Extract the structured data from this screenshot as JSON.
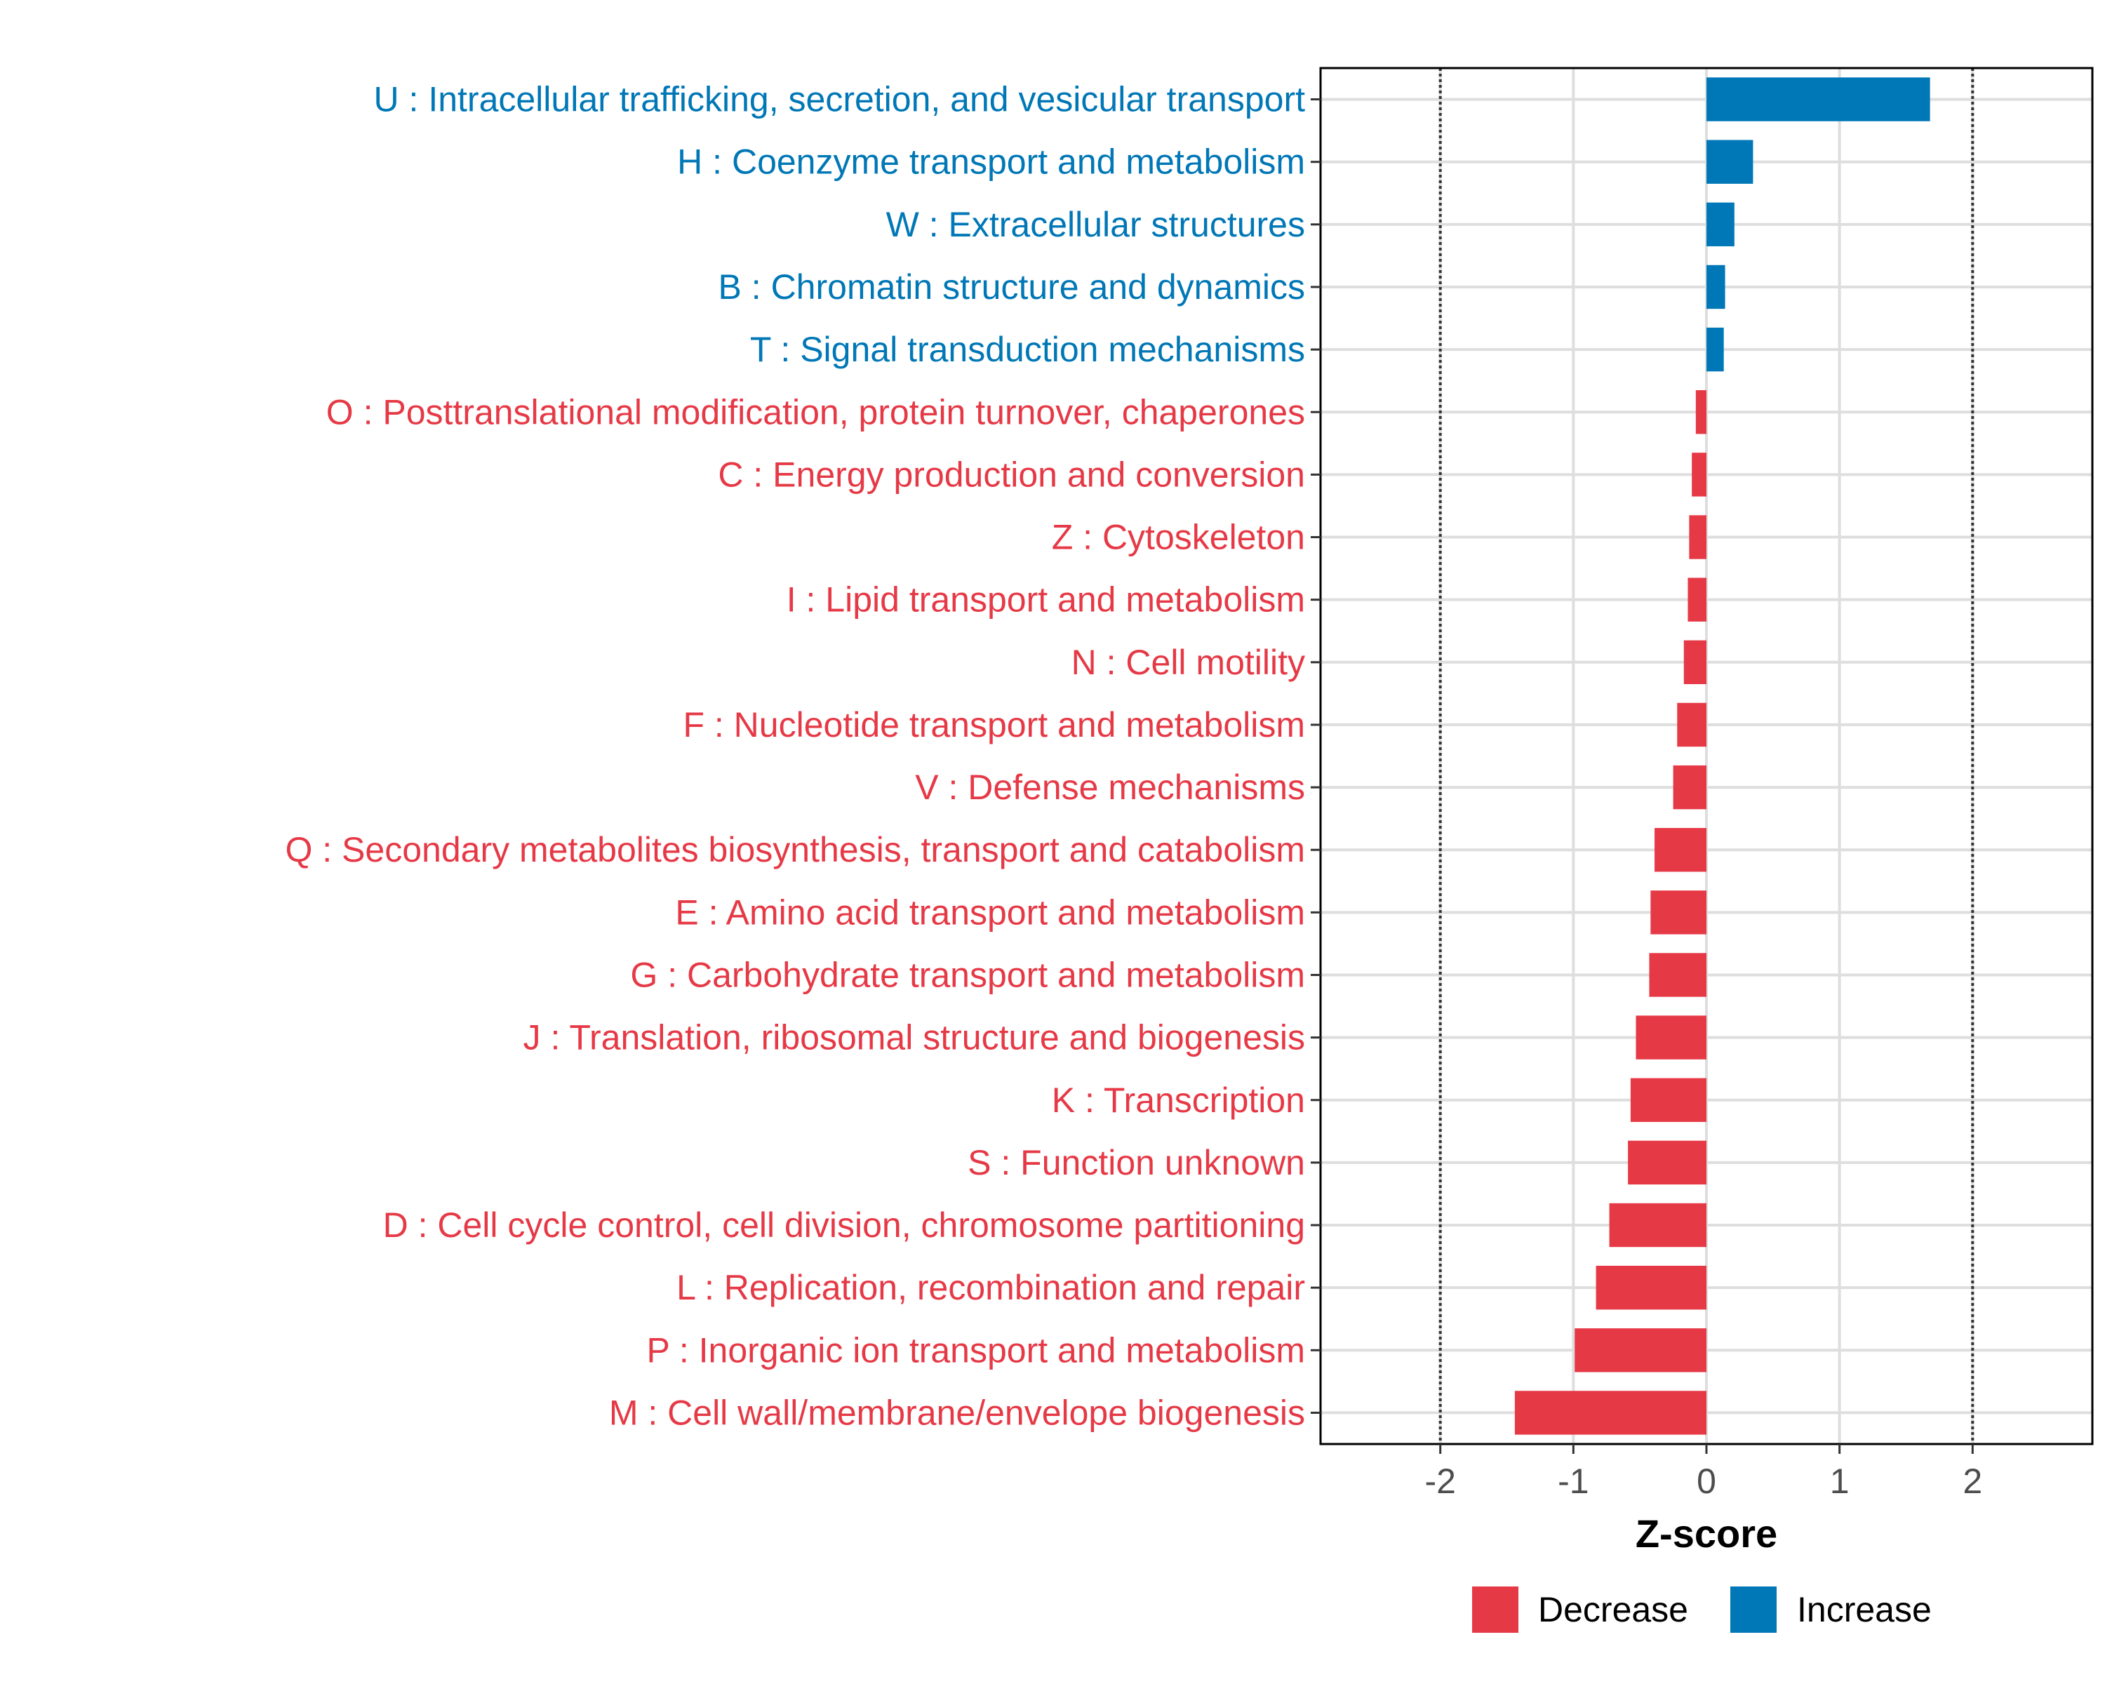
{
  "chart_data": {
    "type": "bar",
    "orientation": "horizontal",
    "title": "",
    "xlabel": "Z-score",
    "ylabel": "",
    "xlim": [
      -2.9,
      2.9
    ],
    "xticks": [
      -2,
      -1,
      0,
      1,
      2
    ],
    "xtick_labels": [
      "-2",
      "-1",
      "0",
      "1",
      "2"
    ],
    "reference_lines": [
      -2,
      2
    ],
    "grid": true,
    "legend_position": "bottom",
    "colors": {
      "Decrease": "#e63946",
      "Increase": "#0077b6"
    },
    "legend": [
      {
        "name": "Decrease",
        "color": "#e63946"
      },
      {
        "name": "Increase",
        "color": "#0077b6"
      }
    ],
    "categories": [
      "U : Intracellular trafficking, secretion, and vesicular transport",
      "H : Coenzyme transport and metabolism",
      "W : Extracellular structures",
      "B : Chromatin structure and dynamics",
      "T : Signal transduction mechanisms",
      "O : Posttranslational modification, protein turnover, chaperones",
      "C : Energy production and conversion",
      "Z : Cytoskeleton",
      "I : Lipid transport and metabolism",
      "N : Cell motility",
      "F : Nucleotide transport and metabolism",
      "V : Defense mechanisms",
      "Q : Secondary metabolites biosynthesis, transport and catabolism",
      "E : Amino acid transport and metabolism",
      "G : Carbohydrate transport and metabolism",
      "J : Translation, ribosomal structure and biogenesis",
      "K : Transcription",
      "S : Function unknown",
      "D : Cell cycle control, cell division, chromosome partitioning",
      "L : Replication, recombination and repair",
      "P : Inorganic ion transport and metabolism",
      "M : Cell wall/membrane/envelope biogenesis"
    ],
    "values": [
      1.68,
      0.35,
      0.21,
      0.14,
      0.13,
      -0.08,
      -0.11,
      -0.13,
      -0.14,
      -0.17,
      -0.22,
      -0.25,
      -0.39,
      -0.42,
      -0.43,
      -0.53,
      -0.57,
      -0.59,
      -0.73,
      -0.83,
      -0.99,
      -1.44
    ],
    "groups": [
      "Increase",
      "Increase",
      "Increase",
      "Increase",
      "Increase",
      "Decrease",
      "Decrease",
      "Decrease",
      "Decrease",
      "Decrease",
      "Decrease",
      "Decrease",
      "Decrease",
      "Decrease",
      "Decrease",
      "Decrease",
      "Decrease",
      "Decrease",
      "Decrease",
      "Decrease",
      "Decrease",
      "Decrease"
    ]
  }
}
